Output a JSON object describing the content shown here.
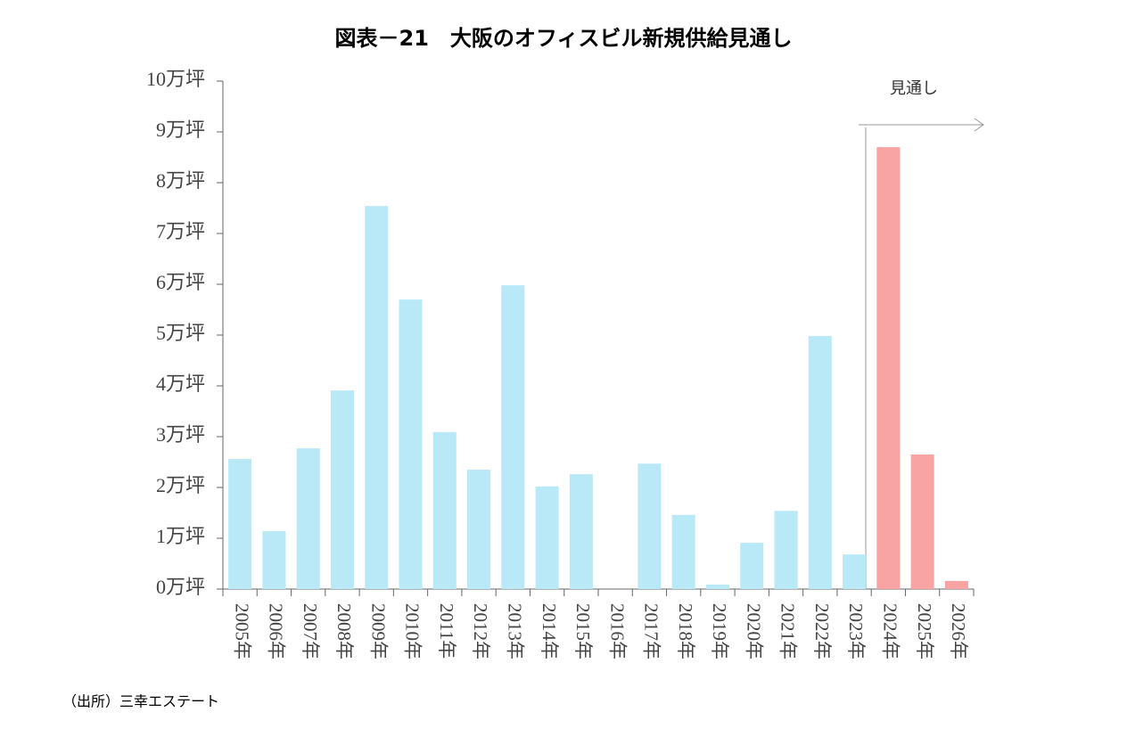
{
  "chart_data": {
    "type": "bar",
    "title": "図表－21　大阪のオフィスビル新規供給見通し",
    "annotation": "見通し",
    "source": "（出所）三幸エステート",
    "categories": [
      "2005年",
      "2006年",
      "2007年",
      "2008年",
      "2009年",
      "2010年",
      "2011年",
      "2012年",
      "2013年",
      "2014年",
      "2015年",
      "2016年",
      "2017年",
      "2018年",
      "2019年",
      "2020年",
      "2021年",
      "2022年",
      "2023年",
      "2024年",
      "2025年",
      "2026年"
    ],
    "values": [
      2.56,
      1.14,
      2.77,
      3.91,
      7.54,
      5.7,
      3.09,
      2.35,
      5.98,
      2.02,
      2.26,
      0,
      2.47,
      1.46,
      0.09,
      0.91,
      1.54,
      4.98,
      0.68,
      8.7,
      2.65,
      0.16
    ],
    "colors": [
      "#b9e9f7",
      "#b9e9f7",
      "#b9e9f7",
      "#b9e9f7",
      "#b9e9f7",
      "#b9e9f7",
      "#b9e9f7",
      "#b9e9f7",
      "#b9e9f7",
      "#b9e9f7",
      "#b9e9f7",
      "#b9e9f7",
      "#b9e9f7",
      "#b9e9f7",
      "#b9e9f7",
      "#b9e9f7",
      "#b9e9f7",
      "#b9e9f7",
      "#b9e9f7",
      "#f8a4a4",
      "#f8a4a4",
      "#f8a4a4"
    ],
    "ylim": [
      0,
      10
    ],
    "yticks": [
      {
        "value": 0,
        "label": "0万坪"
      },
      {
        "value": 1,
        "label": "1万坪"
      },
      {
        "value": 2,
        "label": "2万坪"
      },
      {
        "value": 3,
        "label": "3万坪"
      },
      {
        "value": 4,
        "label": "4万坪"
      },
      {
        "value": 5,
        "label": "5万坪"
      },
      {
        "value": 6,
        "label": "6万坪"
      },
      {
        "value": 7,
        "label": "7万坪"
      },
      {
        "value": 8,
        "label": "8万坪"
      },
      {
        "value": 9,
        "label": "9万坪"
      },
      {
        "value": 10,
        "label": "10万坪"
      }
    ],
    "grid": false
  }
}
